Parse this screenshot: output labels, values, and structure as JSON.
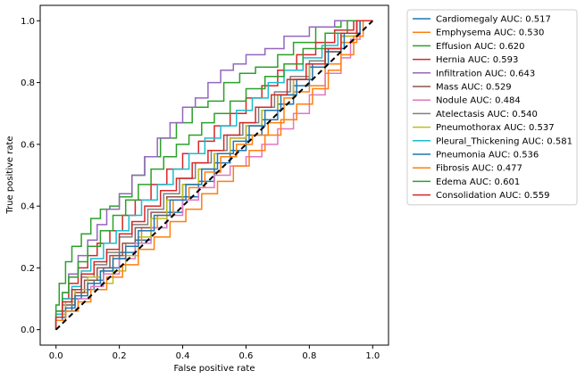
{
  "chart_data": {
    "type": "line",
    "title": "",
    "xlabel": "False positive rate",
    "ylabel": "True positive rate",
    "xlim": [
      -0.05,
      1.05
    ],
    "ylim": [
      -0.05,
      1.05
    ],
    "xticks": [
      "0.0",
      "0.2",
      "0.4",
      "0.6",
      "0.8",
      "1.0"
    ],
    "yticks": [
      "0.0",
      "0.2",
      "0.4",
      "0.6",
      "0.8",
      "1.0"
    ],
    "legend_position": "outside-right",
    "grid": false,
    "reference_line": {
      "x": [
        0,
        1
      ],
      "y": [
        0,
        1
      ],
      "color": "#000000",
      "style": "dashed"
    },
    "series": [
      {
        "name": "Cardiomegaly AUC: 0.517",
        "color": "#1f77b4",
        "x": [
          0,
          0.02,
          0.05,
          0.08,
          0.12,
          0.15,
          0.2,
          0.25,
          0.3,
          0.35,
          0.4,
          0.45,
          0.5,
          0.55,
          0.6,
          0.65,
          0.7,
          0.75,
          0.8,
          0.85,
          0.9,
          0.95,
          1
        ],
        "y": [
          0,
          0.03,
          0.06,
          0.1,
          0.13,
          0.16,
          0.2,
          0.25,
          0.29,
          0.33,
          0.38,
          0.43,
          0.48,
          0.54,
          0.58,
          0.63,
          0.68,
          0.73,
          0.79,
          0.85,
          0.9,
          0.95,
          1
        ]
      },
      {
        "name": "Emphysema AUC: 0.530",
        "color": "#ff7f0e",
        "x": [
          0,
          0.03,
          0.06,
          0.1,
          0.14,
          0.18,
          0.22,
          0.27,
          0.32,
          0.37,
          0.42,
          0.47,
          0.52,
          0.57,
          0.62,
          0.67,
          0.72,
          0.75,
          0.8,
          0.85,
          0.9,
          0.95,
          1
        ],
        "y": [
          0,
          0.04,
          0.08,
          0.12,
          0.15,
          0.19,
          0.24,
          0.28,
          0.33,
          0.37,
          0.42,
          0.46,
          0.51,
          0.56,
          0.6,
          0.63,
          0.67,
          0.75,
          0.77,
          0.79,
          0.86,
          0.93,
          1
        ]
      },
      {
        "name": "Effusion AUC: 0.620",
        "color": "#2ca02c",
        "x": [
          0,
          0.01,
          0.03,
          0.05,
          0.08,
          0.11,
          0.14,
          0.17,
          0.2,
          0.24,
          0.28,
          0.33,
          0.38,
          0.43,
          0.48,
          0.53,
          0.58,
          0.63,
          0.7,
          0.75,
          0.82,
          0.9,
          1
        ],
        "y": [
          0,
          0.08,
          0.15,
          0.22,
          0.27,
          0.31,
          0.36,
          0.39,
          0.4,
          0.43,
          0.5,
          0.56,
          0.62,
          0.67,
          0.72,
          0.74,
          0.8,
          0.83,
          0.85,
          0.89,
          0.93,
          0.98,
          1
        ]
      },
      {
        "name": "Hernia AUC: 0.593",
        "color": "#d62728",
        "x": [
          0,
          0.02,
          0.04,
          0.07,
          0.1,
          0.13,
          0.17,
          0.21,
          0.25,
          0.3,
          0.35,
          0.4,
          0.45,
          0.5,
          0.55,
          0.6,
          0.65,
          0.7,
          0.76,
          0.82,
          0.88,
          0.94,
          1
        ],
        "y": [
          0,
          0.05,
          0.1,
          0.15,
          0.2,
          0.24,
          0.28,
          0.32,
          0.37,
          0.42,
          0.47,
          0.52,
          0.57,
          0.61,
          0.66,
          0.7,
          0.75,
          0.79,
          0.84,
          0.89,
          0.93,
          0.97,
          1
        ]
      },
      {
        "name": "Infiltration AUC: 0.643",
        "color": "#9467bd",
        "x": [
          0,
          0.02,
          0.04,
          0.07,
          0.1,
          0.13,
          0.16,
          0.2,
          0.24,
          0.28,
          0.32,
          0.36,
          0.4,
          0.44,
          0.48,
          0.52,
          0.56,
          0.6,
          0.66,
          0.72,
          0.8,
          0.88,
          1
        ],
        "y": [
          0,
          0.06,
          0.12,
          0.18,
          0.24,
          0.29,
          0.34,
          0.39,
          0.44,
          0.5,
          0.56,
          0.62,
          0.67,
          0.72,
          0.75,
          0.8,
          0.84,
          0.86,
          0.89,
          0.91,
          0.95,
          0.98,
          1
        ]
      },
      {
        "name": "Mass AUC: 0.529",
        "color": "#8c564b",
        "x": [
          0,
          0.03,
          0.06,
          0.09,
          0.13,
          0.17,
          0.21,
          0.25,
          0.3,
          0.35,
          0.4,
          0.45,
          0.5,
          0.55,
          0.6,
          0.65,
          0.7,
          0.75,
          0.8,
          0.85,
          0.9,
          0.95,
          1
        ],
        "y": [
          0,
          0.04,
          0.08,
          0.12,
          0.16,
          0.2,
          0.24,
          0.28,
          0.33,
          0.38,
          0.43,
          0.47,
          0.52,
          0.57,
          0.62,
          0.66,
          0.71,
          0.76,
          0.81,
          0.86,
          0.9,
          0.95,
          1
        ]
      },
      {
        "name": "Nodule AUC: 0.484",
        "color": "#e377c2",
        "x": [
          0,
          0.03,
          0.07,
          0.11,
          0.15,
          0.2,
          0.25,
          0.3,
          0.35,
          0.4,
          0.45,
          0.5,
          0.55,
          0.6,
          0.65,
          0.7,
          0.75,
          0.8,
          0.85,
          0.9,
          0.93,
          0.96,
          1
        ],
        "y": [
          0,
          0.03,
          0.06,
          0.1,
          0.14,
          0.18,
          0.23,
          0.28,
          0.33,
          0.37,
          0.42,
          0.46,
          0.5,
          0.53,
          0.56,
          0.6,
          0.65,
          0.7,
          0.76,
          0.83,
          0.88,
          0.94,
          1
        ]
      },
      {
        "name": "Atelectasis AUC: 0.540",
        "color": "#7f7f7f",
        "x": [
          0,
          0.02,
          0.05,
          0.08,
          0.12,
          0.16,
          0.2,
          0.24,
          0.29,
          0.34,
          0.39,
          0.44,
          0.49,
          0.54,
          0.59,
          0.64,
          0.69,
          0.74,
          0.8,
          0.85,
          0.9,
          0.95,
          1
        ],
        "y": [
          0,
          0.04,
          0.08,
          0.13,
          0.17,
          0.21,
          0.25,
          0.3,
          0.34,
          0.39,
          0.44,
          0.49,
          0.54,
          0.58,
          0.63,
          0.67,
          0.72,
          0.77,
          0.82,
          0.87,
          0.91,
          0.96,
          1
        ]
      },
      {
        "name": "Pneumothorax AUC: 0.537",
        "color": "#bcbd22",
        "x": [
          0,
          0.03,
          0.06,
          0.1,
          0.14,
          0.18,
          0.22,
          0.26,
          0.3,
          0.35,
          0.4,
          0.45,
          0.5,
          0.55,
          0.6,
          0.65,
          0.7,
          0.75,
          0.8,
          0.85,
          0.9,
          0.95,
          1
        ],
        "y": [
          0,
          0.05,
          0.09,
          0.13,
          0.17,
          0.15,
          0.19,
          0.24,
          0.3,
          0.36,
          0.42,
          0.47,
          0.52,
          0.57,
          0.62,
          0.66,
          0.71,
          0.76,
          0.81,
          0.86,
          0.91,
          0.95,
          1
        ]
      },
      {
        "name": "Pleural_Thickening AUC: 0.581",
        "color": "#17becf",
        "x": [
          0,
          0.02,
          0.05,
          0.08,
          0.11,
          0.15,
          0.19,
          0.23,
          0.27,
          0.32,
          0.37,
          0.42,
          0.47,
          0.52,
          0.57,
          0.62,
          0.67,
          0.72,
          0.78,
          0.84,
          0.89,
          0.95,
          1
        ],
        "y": [
          0,
          0.05,
          0.1,
          0.14,
          0.19,
          0.23,
          0.28,
          0.32,
          0.37,
          0.42,
          0.47,
          0.52,
          0.57,
          0.62,
          0.66,
          0.71,
          0.75,
          0.8,
          0.84,
          0.88,
          0.92,
          0.96,
          1
        ]
      },
      {
        "name": "Pneumonia AUC: 0.536",
        "color": "#1f77b4",
        "x": [
          0,
          0.03,
          0.06,
          0.1,
          0.14,
          0.18,
          0.22,
          0.26,
          0.31,
          0.36,
          0.41,
          0.46,
          0.51,
          0.56,
          0.61,
          0.66,
          0.71,
          0.76,
          0.81,
          0.86,
          0.91,
          0.96,
          1
        ],
        "y": [
          0,
          0.04,
          0.07,
          0.11,
          0.15,
          0.19,
          0.23,
          0.27,
          0.32,
          0.37,
          0.42,
          0.47,
          0.52,
          0.57,
          0.61,
          0.66,
          0.71,
          0.76,
          0.81,
          0.86,
          0.91,
          0.96,
          1
        ]
      },
      {
        "name": "Fibrosis AUC: 0.477",
        "color": "#ff7f0e",
        "x": [
          0,
          0.03,
          0.07,
          0.11,
          0.16,
          0.21,
          0.26,
          0.31,
          0.36,
          0.41,
          0.46,
          0.51,
          0.56,
          0.61,
          0.66,
          0.71,
          0.76,
          0.81,
          0.86,
          0.9,
          0.94,
          0.97,
          1
        ],
        "y": [
          0,
          0.03,
          0.06,
          0.09,
          0.13,
          0.17,
          0.21,
          0.26,
          0.3,
          0.35,
          0.39,
          0.44,
          0.48,
          0.53,
          0.58,
          0.63,
          0.68,
          0.73,
          0.78,
          0.84,
          0.89,
          0.95,
          1
        ]
      },
      {
        "name": "Edema AUC: 0.601",
        "color": "#2ca02c",
        "x": [
          0,
          0.02,
          0.04,
          0.07,
          0.1,
          0.14,
          0.18,
          0.22,
          0.26,
          0.3,
          0.34,
          0.38,
          0.42,
          0.46,
          0.5,
          0.55,
          0.6,
          0.66,
          0.72,
          0.78,
          0.85,
          0.92,
          1
        ],
        "y": [
          0,
          0.06,
          0.12,
          0.17,
          0.22,
          0.27,
          0.32,
          0.37,
          0.42,
          0.47,
          0.52,
          0.56,
          0.6,
          0.63,
          0.67,
          0.7,
          0.74,
          0.78,
          0.82,
          0.86,
          0.91,
          0.96,
          1
        ]
      },
      {
        "name": "Consolidation AUC: 0.559",
        "color": "#d62728",
        "x": [
          0,
          0.02,
          0.05,
          0.08,
          0.12,
          0.16,
          0.2,
          0.24,
          0.28,
          0.33,
          0.38,
          0.43,
          0.48,
          0.53,
          0.58,
          0.63,
          0.68,
          0.73,
          0.79,
          0.85,
          0.9,
          0.95,
          1
        ],
        "y": [
          0,
          0.04,
          0.09,
          0.13,
          0.18,
          0.22,
          0.26,
          0.31,
          0.35,
          0.4,
          0.45,
          0.49,
          0.54,
          0.58,
          0.63,
          0.67,
          0.72,
          0.76,
          0.81,
          0.86,
          0.91,
          0.96,
          1
        ]
      }
    ]
  }
}
